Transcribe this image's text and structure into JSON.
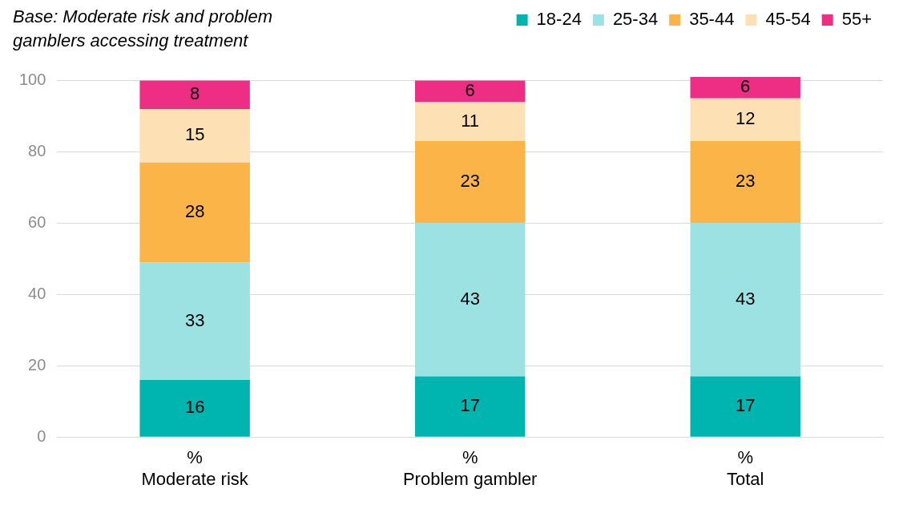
{
  "chart_data": {
    "type": "bar",
    "stacked": true,
    "subtitle": "Base: Moderate risk and problem gamblers accessing treatment",
    "categories": [
      "%\nModerate risk",
      "%\nProblem gambler",
      "%\nTotal"
    ],
    "series": [
      {
        "name": "18-24",
        "color": "#00b5b0",
        "values": [
          16,
          17,
          17
        ]
      },
      {
        "name": "25-34",
        "color": "#9ce2e2",
        "values": [
          33,
          43,
          43
        ]
      },
      {
        "name": "35-44",
        "color": "#fbb447",
        "values": [
          28,
          23,
          23
        ]
      },
      {
        "name": "45-54",
        "color": "#fde0b4",
        "values": [
          15,
          11,
          12
        ]
      },
      {
        "name": "55+",
        "color": "#ee2e85",
        "values": [
          8,
          6,
          6
        ]
      }
    ],
    "ylim": [
      0,
      101
    ],
    "yticks": [
      0,
      20,
      40,
      60,
      80,
      100
    ],
    "grid": "y",
    "legend": "top right",
    "data_labels": true
  }
}
